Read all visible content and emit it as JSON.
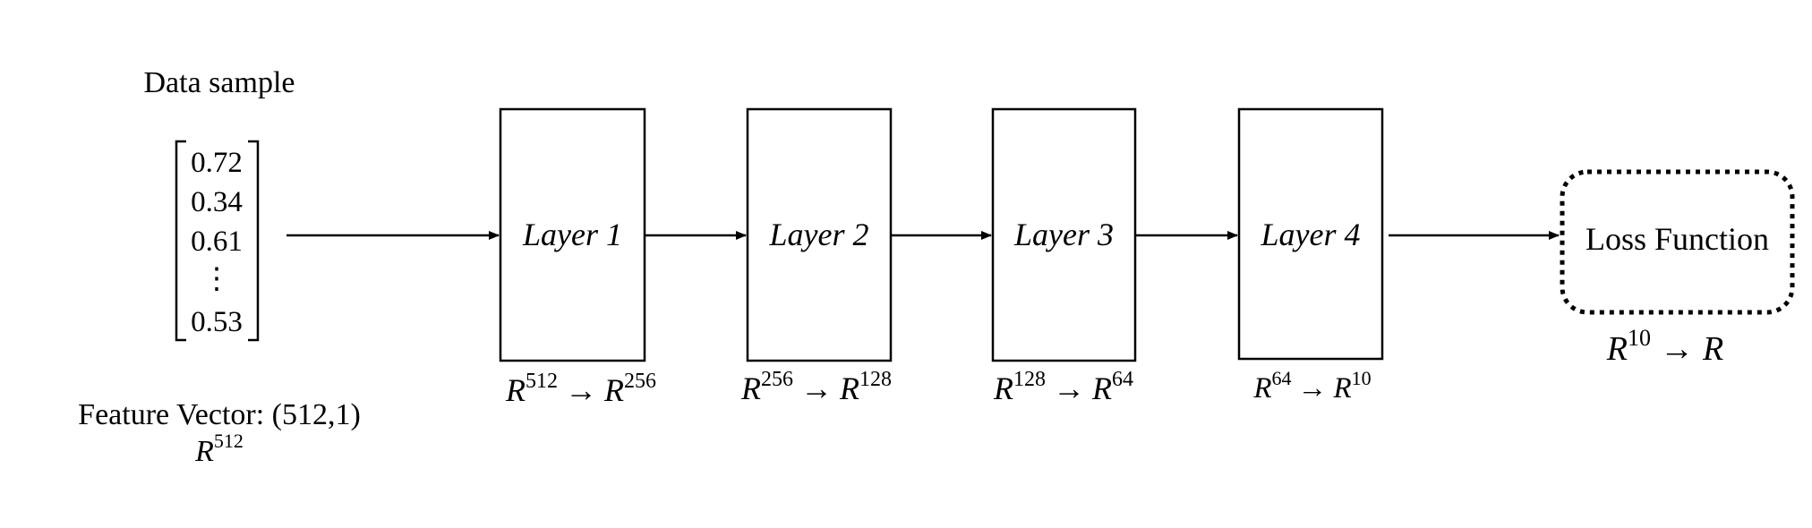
{
  "data_sample": {
    "title": "Data sample",
    "vector_values": [
      "0.72",
      "0.34",
      "0.61",
      "0.53"
    ],
    "vector_ellipsis": "⋮",
    "feature_vector_label": "Feature Vector: (512,1)",
    "space": {
      "base": "R",
      "exp": "512"
    }
  },
  "layers": [
    {
      "label": "Layer 1",
      "mapping": {
        "from_base": "R",
        "from_exp": "512",
        "arrow": "→",
        "to_base": "R",
        "to_exp": "256"
      }
    },
    {
      "label": "Layer 2",
      "mapping": {
        "from_base": "R",
        "from_exp": "256",
        "arrow": "→",
        "to_base": "R",
        "to_exp": "128"
      }
    },
    {
      "label": "Layer 3",
      "mapping": {
        "from_base": "R",
        "from_exp": "128",
        "arrow": "→",
        "to_base": "R",
        "to_exp": "64"
      }
    },
    {
      "label": "Layer 4",
      "mapping": {
        "from_base": "R",
        "from_exp": "64",
        "arrow": "→",
        "to_base": "R",
        "to_exp": "10"
      }
    }
  ],
  "loss": {
    "label": "Loss Function",
    "mapping": {
      "from_base": "R",
      "from_exp": "10",
      "arrow": "→",
      "to_base": "R"
    }
  },
  "colors": {
    "stroke": "#000000",
    "background": "#ffffff"
  }
}
